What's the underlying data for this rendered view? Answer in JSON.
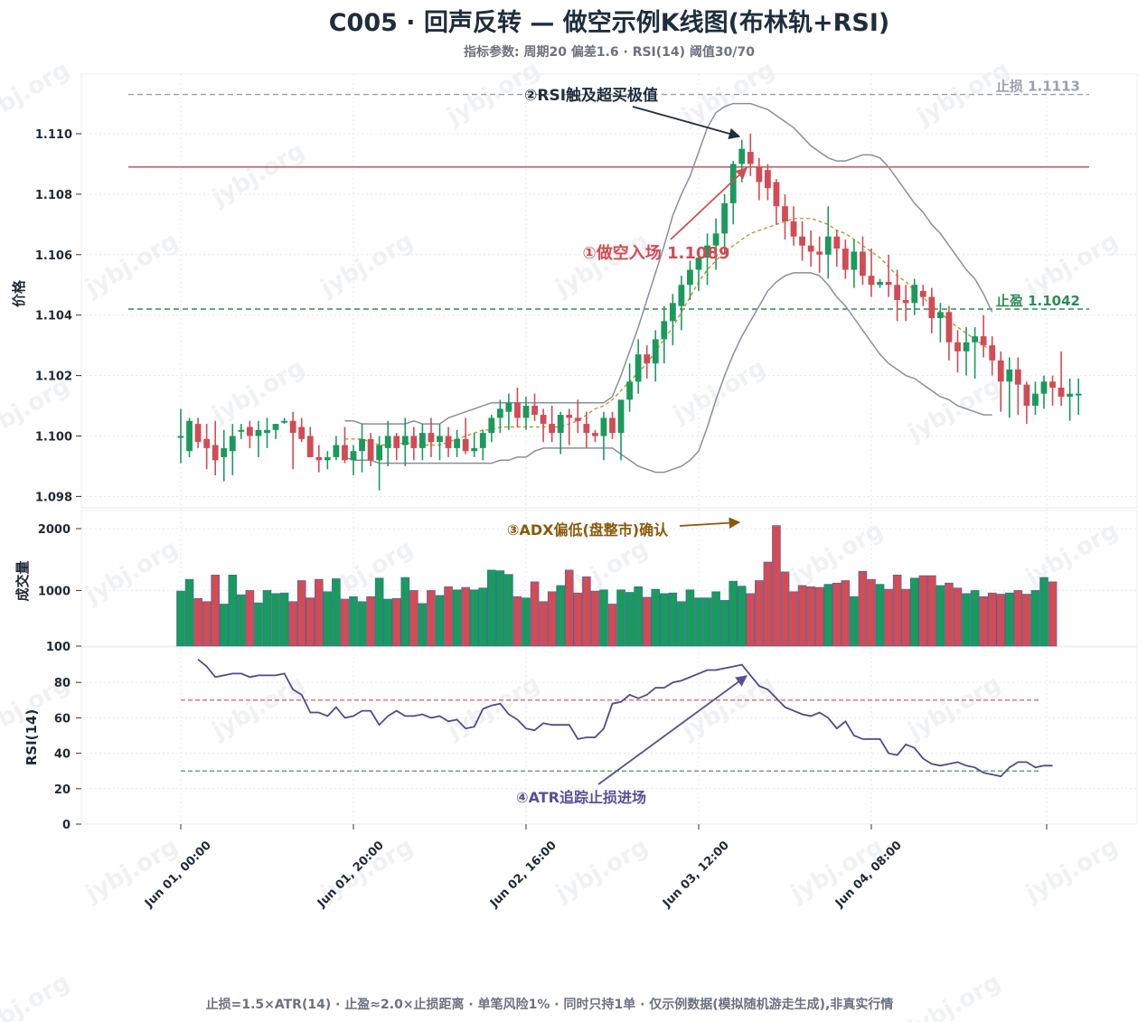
{
  "title": "C005 · 回声反转 — 做空示例K线图(布林轨+RSI)",
  "subtitle": "指标参数: 周期20 偏差1.6 · RSI(14) 阈值30/70",
  "footer": "止损=1.5×ATR(14) · 止盈≈2.0×止损距离 · 单笔风险1% · 同时只持1单 · 仅示例数据(模拟随机游走生成),非真实行情",
  "watermark": "jybj.org",
  "colors": {
    "up": "#1a9a5c",
    "down": "#d24b55",
    "band": "#8a8f9c",
    "mid": "#c4952a",
    "rsi": "#4f4a8b",
    "title": "#1f2d3d"
  },
  "chart_data": [
    {
      "type": "candlestick",
      "panel": "price",
      "ylabel": "价格",
      "ylim": [
        1.0978,
        1.1122
      ],
      "yticks": [
        "1.098",
        "1.100",
        "1.102",
        "1.104",
        "1.106",
        "1.108",
        "1.110"
      ],
      "x_start": "Jun 01, 00:00",
      "bar_interval_hours": 2,
      "xticks": [
        "Jun 01, 00:00",
        "Jun 01, 20:00",
        "Jun 02, 16:00",
        "Jun 03, 12:00",
        "Jun 04, 08:00"
      ],
      "ohlc": [
        [
          1.1,
          1.1009,
          1.0991,
          1.1
        ],
        [
          1.0995,
          1.1006,
          1.0993,
          1.1005
        ],
        [
          1.1004,
          1.1006,
          1.0996,
          1.0998
        ],
        [
          1.0999,
          1.1004,
          1.0989,
          1.0996
        ],
        [
          1.0997,
          1.1005,
          1.0987,
          1.0992
        ],
        [
          1.0993,
          1.1002,
          1.0985,
          1.0996
        ],
        [
          1.0995,
          1.1004,
          1.0987,
          1.1
        ],
        [
          1.1002,
          1.1004,
          1.0999,
          1.1002
        ],
        [
          1.1003,
          1.1005,
          1.0996,
          1.1
        ],
        [
          1.1,
          1.1005,
          1.0993,
          1.1002
        ],
        [
          1.1001,
          1.1006,
          1.0996,
          1.1002
        ],
        [
          1.1002,
          1.1004,
          1.0999,
          1.1004
        ],
        [
          1.1005,
          1.1006,
          1.1004,
          1.1005
        ],
        [
          1.1005,
          1.1008,
          1.0989,
          1.1001
        ],
        [
          1.1003,
          1.1006,
          1.0998,
          1.0999
        ],
        [
          1.1,
          1.1003,
          1.0993,
          1.0993
        ],
        [
          1.0993,
          1.0997,
          1.0988,
          1.0992
        ],
        [
          1.0992,
          1.0995,
          1.0989,
          1.0993
        ],
        [
          1.0993,
          1.1,
          1.0992,
          1.0997
        ],
        [
          1.0997,
          1.1003,
          1.0991,
          1.0992
        ],
        [
          1.0992,
          1.0997,
          1.0987,
          1.0995
        ],
        [
          1.0995,
          1.1004,
          1.0988,
          1.0999
        ],
        [
          1.0999,
          1.1001,
          1.099,
          1.0992
        ],
        [
          1.0992,
          1.1,
          1.0982,
          1.0997
        ],
        [
          1.0996,
          1.1005,
          1.099,
          1.1
        ],
        [
          1.1,
          1.1001,
          1.0992,
          1.0996
        ],
        [
          1.0997,
          1.1006,
          1.099,
          1.1
        ],
        [
          1.1,
          1.1003,
          1.0992,
          1.0996
        ],
        [
          1.0996,
          1.1004,
          1.0992,
          1.1001
        ],
        [
          1.1001,
          1.1006,
          1.0993,
          1.0998
        ],
        [
          1.0998,
          1.1004,
          1.0992,
          1.1
        ],
        [
          1.1,
          1.1003,
          1.0993,
          1.0996
        ],
        [
          1.0996,
          1.1002,
          1.0993,
          1.0999
        ],
        [
          1.0999,
          1.1006,
          1.0994,
          1.0995
        ],
        [
          1.0995,
          1.1001,
          1.0993,
          1.0996
        ],
        [
          1.0996,
          1.1002,
          1.0992,
          1.1001
        ],
        [
          1.1001,
          1.1007,
          1.0998,
          1.1006
        ],
        [
          1.1006,
          1.1012,
          1.1001,
          1.1009
        ],
        [
          1.1008,
          1.1014,
          1.1002,
          1.1011
        ],
        [
          1.1011,
          1.1016,
          1.1003,
          1.1006
        ],
        [
          1.1006,
          1.1013,
          1.1002,
          1.101
        ],
        [
          1.101,
          1.1014,
          1.1005,
          1.1007
        ],
        [
          1.1007,
          1.1009,
          1.0998,
          1.1004
        ],
        [
          1.1004,
          1.101,
          1.0998,
          1.1001
        ],
        [
          1.1001,
          1.1008,
          1.0994,
          1.1007
        ],
        [
          1.1007,
          1.1009,
          1.0997,
          1.1006
        ],
        [
          1.1006,
          1.1012,
          1.1001,
          1.1005
        ],
        [
          1.1004,
          1.1008,
          1.0996,
          1.1001
        ],
        [
          1.1001,
          1.1002,
          1.0998,
          1.1
        ],
        [
          1.1,
          1.1008,
          1.0992,
          1.1006
        ],
        [
          1.1006,
          1.1008,
          1.0999,
          1.1001
        ],
        [
          1.1001,
          1.1012,
          1.0992,
          1.1012
        ],
        [
          1.1012,
          1.1024,
          1.1008,
          1.1018
        ],
        [
          1.1018,
          1.1032,
          1.1014,
          1.1027
        ],
        [
          1.1027,
          1.103,
          1.1019,
          1.1024
        ],
        [
          1.1024,
          1.1035,
          1.1018,
          1.1032
        ],
        [
          1.1032,
          1.1043,
          1.1024,
          1.1038
        ],
        [
          1.1038,
          1.1047,
          1.103,
          1.1044
        ],
        [
          1.1043,
          1.1053,
          1.1035,
          1.105
        ],
        [
          1.105,
          1.1058,
          1.1045,
          1.1055
        ],
        [
          1.1055,
          1.1062,
          1.1048,
          1.1059
        ],
        [
          1.1059,
          1.1067,
          1.105,
          1.1063
        ],
        [
          1.1063,
          1.1072,
          1.1055,
          1.1067
        ],
        [
          1.1067,
          1.108,
          1.106,
          1.1077
        ],
        [
          1.1077,
          1.1091,
          1.107,
          1.109
        ],
        [
          1.109,
          1.1098,
          1.1084,
          1.1095
        ],
        [
          1.1094,
          1.11,
          1.1086,
          1.109
        ],
        [
          1.1089,
          1.1092,
          1.1078,
          1.1084
        ],
        [
          1.1088,
          1.109,
          1.1078,
          1.1082
        ],
        [
          1.1084,
          1.1085,
          1.107,
          1.1076
        ],
        [
          1.1076,
          1.108,
          1.1065,
          1.1071
        ],
        [
          1.1071,
          1.1076,
          1.1063,
          1.1066
        ],
        [
          1.1066,
          1.1071,
          1.1058,
          1.1063
        ],
        [
          1.1063,
          1.1068,
          1.1056,
          1.1061
        ],
        [
          1.1061,
          1.1066,
          1.1054,
          1.106
        ],
        [
          1.106,
          1.1076,
          1.1052,
          1.1066
        ],
        [
          1.1066,
          1.1068,
          1.1056,
          1.1062
        ],
        [
          1.1062,
          1.1065,
          1.1052,
          1.1055
        ],
        [
          1.1055,
          1.1065,
          1.1049,
          1.1061
        ],
        [
          1.1061,
          1.1066,
          1.105,
          1.1053
        ],
        [
          1.1053,
          1.1062,
          1.1046,
          1.105
        ],
        [
          1.105,
          1.1052,
          1.1049,
          1.1051
        ],
        [
          1.1051,
          1.106,
          1.1046,
          1.105
        ],
        [
          1.105,
          1.1055,
          1.1038,
          1.1045
        ],
        [
          1.1045,
          1.105,
          1.1038,
          1.1044
        ],
        [
          1.1044,
          1.1052,
          1.104,
          1.105
        ],
        [
          1.1048,
          1.105,
          1.1043,
          1.1046
        ],
        [
          1.1046,
          1.1049,
          1.1034,
          1.1039
        ],
        [
          1.1039,
          1.1044,
          1.1031,
          1.1041
        ],
        [
          1.1041,
          1.1043,
          1.1025,
          1.1031
        ],
        [
          1.1031,
          1.1035,
          1.1021,
          1.1028
        ],
        [
          1.1028,
          1.1036,
          1.102,
          1.1031
        ],
        [
          1.1031,
          1.1036,
          1.1019,
          1.1033
        ],
        [
          1.1033,
          1.104,
          1.1026,
          1.103
        ],
        [
          1.103,
          1.1033,
          1.102,
          1.1025
        ],
        [
          1.1025,
          1.1028,
          1.1008,
          1.1018
        ],
        [
          1.1018,
          1.1026,
          1.1006,
          1.1022
        ],
        [
          1.1022,
          1.1026,
          1.1007,
          1.1017
        ],
        [
          1.1017,
          1.1018,
          1.1004,
          1.101
        ],
        [
          1.101,
          1.1018,
          1.1007,
          1.1014
        ],
        [
          1.1014,
          1.102,
          1.1009,
          1.1018
        ],
        [
          1.1018,
          1.102,
          1.101,
          1.1016
        ],
        [
          1.1016,
          1.1028,
          1.101,
          1.1013
        ],
        [
          1.1013,
          1.1019,
          1.1005,
          1.1014
        ],
        [
          1.1014,
          1.1019,
          1.1007,
          1.1014
        ]
      ],
      "bollinger_start_index": 19,
      "bollinger_upper": [
        1.1005,
        1.1005,
        1.1004,
        1.1004,
        1.1004,
        1.1004,
        1.1004,
        1.1004,
        1.1005,
        1.1004,
        1.1004,
        1.1004,
        1.1006,
        1.1007,
        1.1008,
        1.1009,
        1.101,
        1.1011,
        1.1011,
        1.1011,
        1.1011,
        1.1011,
        1.1011,
        1.1011,
        1.1011,
        1.1011,
        1.1011,
        1.1011,
        1.1011,
        1.1011,
        1.1011,
        1.1013,
        1.102,
        1.1028,
        1.1036,
        1.1045,
        1.1054,
        1.1063,
        1.1073,
        1.108,
        1.1086,
        1.1094,
        1.1102,
        1.1107,
        1.1109,
        1.111,
        1.111,
        1.111,
        1.1109,
        1.1108,
        1.1106,
        1.1104,
        1.1102,
        1.1099,
        1.1096,
        1.1094,
        1.1092,
        1.1091,
        1.1091,
        1.1092,
        1.1093,
        1.1093,
        1.1092,
        1.1089,
        1.1085,
        1.1081,
        1.1077,
        1.1074,
        1.107,
        1.1067,
        1.1063,
        1.1059,
        1.1055,
        1.1052,
        1.1047,
        1.1041
      ],
      "bollinger_mid": [
        1.0999,
        1.0999,
        1.0999,
        1.0998,
        1.0997,
        1.0997,
        1.0997,
        1.0998,
        1.0997,
        1.0997,
        1.0997,
        1.0997,
        1.0998,
        1.0999,
        1.1,
        1.1001,
        1.1002,
        1.1002,
        1.1003,
        1.1003,
        1.1003,
        1.1003,
        1.1003,
        1.1003,
        1.1003,
        1.1003,
        1.1004,
        1.1005,
        1.1007,
        1.1009,
        1.101,
        1.1012,
        1.1015,
        1.1018,
        1.1021,
        1.1024,
        1.1028,
        1.1032,
        1.1036,
        1.1041,
        1.1046,
        1.1051,
        1.1055,
        1.1058,
        1.1061,
        1.1063,
        1.1065,
        1.1067,
        1.1068,
        1.1069,
        1.107,
        1.1071,
        1.1072,
        1.1072,
        1.1072,
        1.1071,
        1.107,
        1.1068,
        1.1067,
        1.1065,
        1.1063,
        1.1061,
        1.1059,
        1.1056,
        1.1053,
        1.1051,
        1.1048,
        1.1046,
        1.1043,
        1.1041,
        1.1038,
        1.1036,
        1.1034,
        1.1032,
        1.103,
        1.1028
      ],
      "bollinger_lower": [
        1.0993,
        1.0992,
        1.0992,
        1.0992,
        1.0991,
        1.0991,
        1.0991,
        1.0991,
        1.0991,
        1.0991,
        1.0991,
        1.0991,
        1.0991,
        1.0991,
        1.0991,
        1.0991,
        1.0991,
        1.0991,
        1.0992,
        1.0992,
        1.0993,
        1.0993,
        1.0995,
        1.0996,
        1.0996,
        1.0996,
        1.0996,
        1.0996,
        1.0996,
        1.0996,
        1.0996,
        1.0996,
        1.0994,
        1.0992,
        1.099,
        1.0989,
        1.0988,
        1.0988,
        1.0989,
        1.099,
        1.0992,
        1.0995,
        1.1003,
        1.1012,
        1.102,
        1.1027,
        1.1033,
        1.1038,
        1.1043,
        1.1048,
        1.1051,
        1.1053,
        1.1054,
        1.1054,
        1.1054,
        1.1053,
        1.105,
        1.1046,
        1.1043,
        1.1039,
        1.1035,
        1.1031,
        1.1027,
        1.1024,
        1.1022,
        1.102,
        1.1019,
        1.1017,
        1.1015,
        1.1013,
        1.1012,
        1.101,
        1.1009,
        1.1008,
        1.1007,
        1.1007
      ],
      "lines": [
        {
          "label": "止损 1.1113",
          "value": 1.1113,
          "color": "#9aa0aa",
          "style": "dashed"
        },
        {
          "label": "",
          "value": 1.1089,
          "color": "#c2404b",
          "style": "solid"
        },
        {
          "label": "止盈 1.1042",
          "value": 1.1042,
          "color": "#2e8b57",
          "style": "dashed"
        }
      ],
      "annotations": [
        {
          "text": "①做空入场 1.1089",
          "color": "#d24b55"
        },
        {
          "text": "②RSI触及超买极值",
          "color": "#1f2d3d"
        }
      ]
    },
    {
      "type": "bar",
      "panel": "volume",
      "ylabel": "成交量",
      "ylim": [
        100,
        2200
      ],
      "yticks": [
        "100",
        "1000",
        "2000"
      ],
      "values": [
        990,
        1180,
        870,
        820,
        1250,
        780,
        1250,
        930,
        1000,
        800,
        1000,
        950,
        960,
        820,
        1160,
        880,
        1180,
        980,
        1190,
        860,
        900,
        820,
        900,
        1200,
        860,
        870,
        1210,
        1000,
        790,
        1000,
        920,
        1060,
        1010,
        1050,
        1010,
        1040,
        1330,
        1320,
        1260,
        900,
        880,
        1140,
        820,
        980,
        1080,
        1330,
        960,
        1220,
        990,
        1010,
        780,
        1010,
        970,
        1060,
        890,
        1020,
        950,
        960,
        820,
        1010,
        880,
        880,
        980,
        840,
        1150,
        1070,
        950,
        1160,
        1460,
        2050,
        1300,
        980,
        1080,
        1060,
        1050,
        1100,
        1120,
        1160,
        900,
        1310,
        1180,
        1100,
        1020,
        1250,
        1020,
        1200,
        1240,
        1240,
        1080,
        1120,
        1040,
        950,
        1000,
        900,
        960,
        940,
        960,
        1000,
        940,
        1000,
        1210,
        1140
      ],
      "annotation": {
        "text": "③ADX偏低(盘整市)确认",
        "color": "#8a5a0a"
      }
    },
    {
      "type": "line",
      "panel": "rsi",
      "ylabel": "RSI(14)",
      "ylim": [
        0,
        100
      ],
      "yticks": [
        "0",
        "20",
        "40",
        "60",
        "80"
      ],
      "thresholds": [
        70,
        30
      ],
      "start_index": 2,
      "values": [
        93,
        89,
        83,
        84,
        85,
        85,
        83,
        84,
        84,
        84,
        85,
        76,
        73,
        63,
        63,
        61,
        66,
        60,
        61,
        64,
        64,
        56,
        61,
        64,
        61,
        61,
        62,
        60,
        61,
        58,
        59,
        54,
        55,
        65,
        67,
        68,
        62,
        59,
        54,
        53,
        57,
        56,
        56,
        56,
        48,
        49,
        49,
        54,
        68,
        69,
        73,
        71,
        73,
        77,
        77,
        80,
        81,
        83,
        85,
        87,
        87,
        88,
        89,
        90,
        84,
        78,
        76,
        71,
        66,
        64,
        62,
        61,
        63,
        60,
        54,
        58,
        50,
        48,
        48,
        48,
        40,
        39,
        45,
        43,
        37,
        34,
        33,
        34,
        35,
        33,
        32,
        29,
        28,
        27,
        32,
        35,
        35,
        32,
        33,
        33
      ],
      "annotation": {
        "text": "④ATR追踪止损进场",
        "color": "#5a4f96"
      }
    }
  ]
}
